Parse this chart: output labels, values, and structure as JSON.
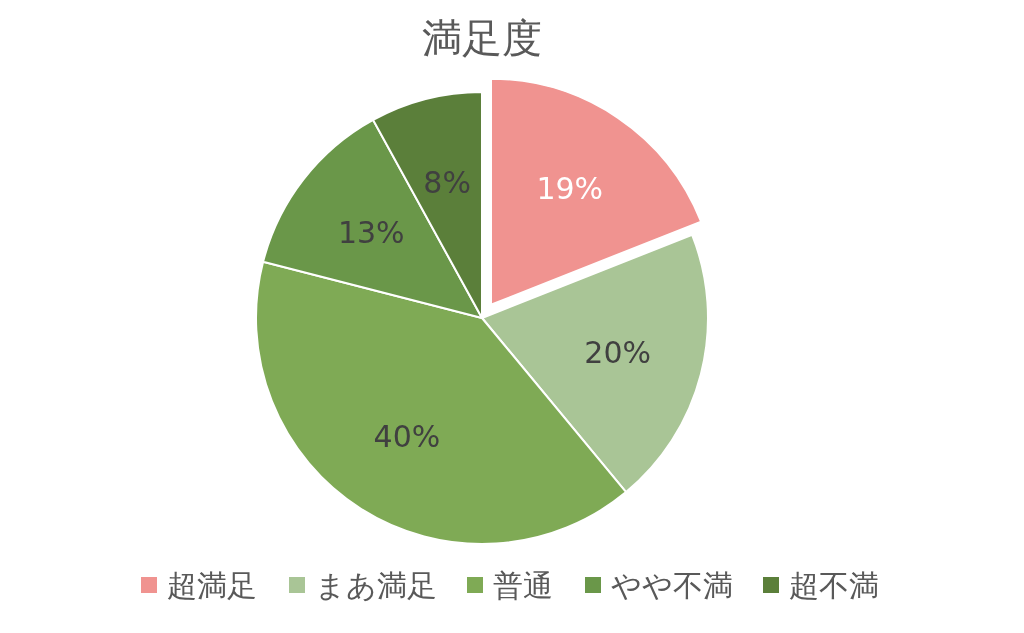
{
  "chart_data": {
    "type": "pie",
    "title": "満足度",
    "categories": [
      "超満足",
      "まあ満足",
      "普通",
      "やや不満",
      "超不満"
    ],
    "values": [
      19,
      20,
      40,
      13,
      8
    ],
    "colors": [
      "#f09390",
      "#a9c596",
      "#7faa55",
      "#6a9749",
      "#5b7f3a"
    ],
    "value_labels": [
      "19%",
      "20%",
      "40%",
      "13%",
      "8%"
    ],
    "legend": "bottom"
  }
}
